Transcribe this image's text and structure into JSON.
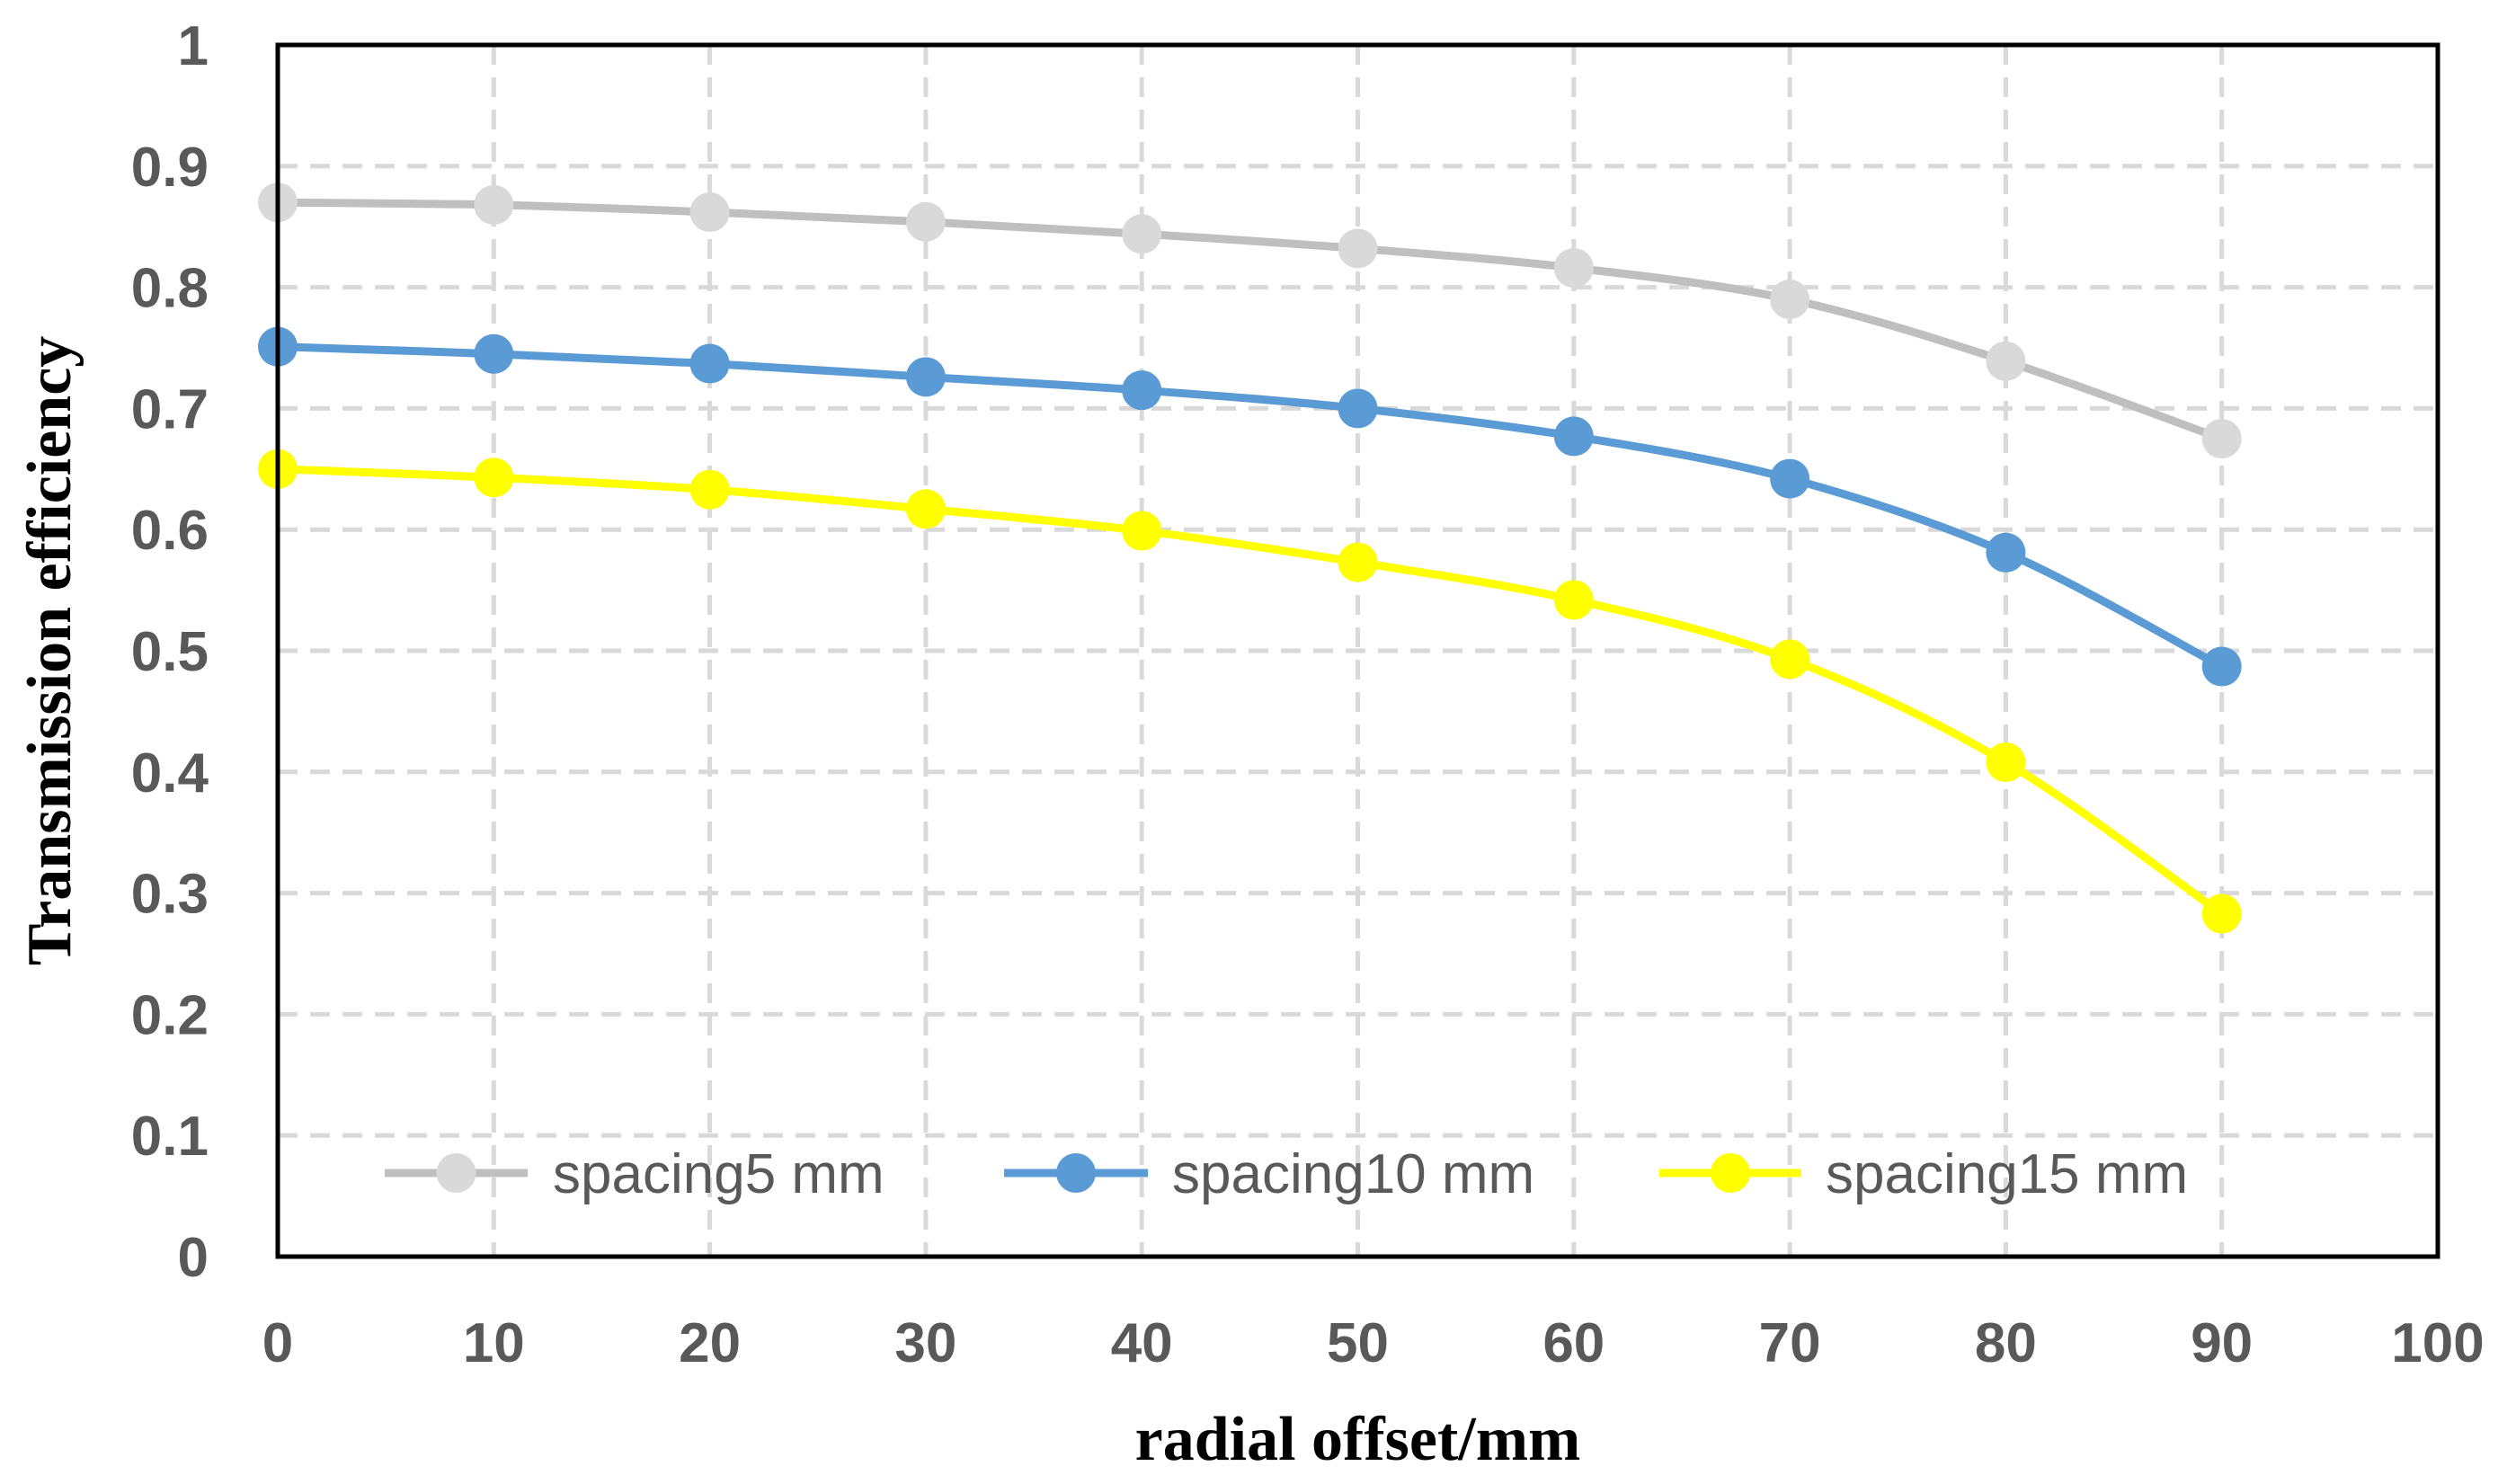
{
  "chart_data": {
    "type": "line",
    "xlabel": "radial offset/mm",
    "ylabel": "Transmission efficiency",
    "xlim": [
      0,
      100
    ],
    "ylim": [
      0,
      1
    ],
    "x_ticks": [
      "0",
      "10",
      "20",
      "30",
      "40",
      "50",
      "60",
      "70",
      "80",
      "90",
      "100"
    ],
    "y_ticks": [
      "0",
      "0.1",
      "0.2",
      "0.3",
      "0.4",
      "0.5",
      "0.6",
      "0.7",
      "0.8",
      "0.9",
      "1"
    ],
    "grid": true,
    "legend_position": "bottom-inside",
    "x": [
      0,
      10,
      20,
      30,
      40,
      50,
      60,
      70,
      80,
      90
    ],
    "series": [
      {
        "name": "spacing5 mm",
        "color": "#bfbfbf",
        "marker_color": "#d9d9d9",
        "values": [
          0.87,
          0.868,
          0.862,
          0.854,
          0.844,
          0.832,
          0.816,
          0.79,
          0.739,
          0.675
        ]
      },
      {
        "name": "spacing10 mm",
        "color": "#5b9bd5",
        "marker_color": "#5b9bd5",
        "values": [
          0.751,
          0.745,
          0.737,
          0.726,
          0.715,
          0.7,
          0.677,
          0.642,
          0.581,
          0.487
        ]
      },
      {
        "name": "spacing15 mm",
        "color": "#ffff00",
        "marker_color": "#ffff00",
        "values": [
          0.65,
          0.643,
          0.633,
          0.617,
          0.599,
          0.573,
          0.542,
          0.493,
          0.408,
          0.283
        ]
      }
    ]
  }
}
